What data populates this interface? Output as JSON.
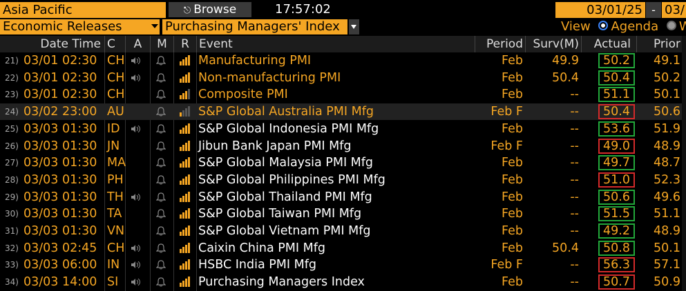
{
  "top": {
    "region": "Asia Pacific",
    "browse_label": "Browse",
    "clock": "17:57:02",
    "date_from": "03/01/25",
    "date_sep": "-",
    "date_to": "03/"
  },
  "filters": {
    "category": "Economic Releases",
    "index": "Purchasing Managers' Index"
  },
  "view": {
    "label": "View",
    "agenda": "Agenda",
    "week": "We"
  },
  "columns": {
    "datetime": "Date Time",
    "country": "C",
    "alert": "A",
    "memo": "M",
    "relevance": "R",
    "event": "Event",
    "period": "Period",
    "survey": "Surv(M)",
    "actual": "Actual",
    "prior": "Prior"
  },
  "colors": {
    "accent": "#f5a623",
    "beat": "#22a83a",
    "miss": "#d42a2a"
  },
  "rows": [
    {
      "n": "21)",
      "dt": "03/01 02:30",
      "c": "CH",
      "spk": true,
      "rel": 4,
      "ev": "Manufacturing PMI",
      "evc": "o",
      "per": "Feb",
      "surv": "49.9",
      "act": "50.2",
      "box": "g",
      "prior": "49.1"
    },
    {
      "n": "22)",
      "dt": "03/01 02:30",
      "c": "CH",
      "spk": true,
      "rel": 4,
      "ev": "Non-manufacturing PMI",
      "evc": "o",
      "per": "Feb",
      "surv": "50.4",
      "act": "50.4",
      "box": "g",
      "prior": "50.2"
    },
    {
      "n": "23)",
      "dt": "03/01 02:30",
      "c": "CH",
      "spk": false,
      "rel": 3,
      "ev": "Composite PMI",
      "evc": "o",
      "per": "Feb",
      "surv": "--",
      "act": "51.1",
      "box": "g",
      "prior": "50.1"
    },
    {
      "n": "24)",
      "dt": "03/02 23:00",
      "c": "AU",
      "spk": false,
      "rel": 1,
      "ev": "S&P Global Australia PMI Mfg",
      "evc": "o",
      "per": "Feb F",
      "surv": "--",
      "act": "50.4",
      "box": "r",
      "prior": "50.6",
      "hl": true
    },
    {
      "n": "25)",
      "dt": "03/03 01:30",
      "c": "ID",
      "spk": true,
      "rel": 4,
      "ev": "S&P Global Indonesia PMI Mfg",
      "evc": "w",
      "per": "Feb",
      "surv": "--",
      "act": "53.6",
      "box": "g",
      "prior": "51.9"
    },
    {
      "n": "26)",
      "dt": "03/03 01:30",
      "c": "JN",
      "spk": false,
      "rel": 4,
      "ev": "Jibun Bank Japan PMI Mfg",
      "evc": "w",
      "per": "Feb F",
      "surv": "--",
      "act": "49.0",
      "box": "r",
      "prior": "48.9"
    },
    {
      "n": "27)",
      "dt": "03/03 01:30",
      "c": "MA",
      "spk": false,
      "rel": 4,
      "ev": "S&P Global Malaysia PMI Mfg",
      "evc": "w",
      "per": "Feb",
      "surv": "--",
      "act": "49.7",
      "box": "g",
      "prior": "48.7"
    },
    {
      "n": "28)",
      "dt": "03/03 01:30",
      "c": "PH",
      "spk": false,
      "rel": 4,
      "ev": "S&P Global Philippines PMI Mfg",
      "evc": "w",
      "per": "Feb",
      "surv": "--",
      "act": "51.0",
      "box": "r",
      "prior": "52.3"
    },
    {
      "n": "29)",
      "dt": "03/03 01:30",
      "c": "TH",
      "spk": true,
      "rel": 4,
      "ev": "S&P Global Thailand PMI Mfg",
      "evc": "w",
      "per": "Feb",
      "surv": "--",
      "act": "50.6",
      "box": "g",
      "prior": "49.6"
    },
    {
      "n": "30)",
      "dt": "03/03 01:30",
      "c": "TA",
      "spk": false,
      "rel": 4,
      "ev": "S&P Global Taiwan PMI Mfg",
      "evc": "w",
      "per": "Feb",
      "surv": "--",
      "act": "51.5",
      "box": "g",
      "prior": "51.1"
    },
    {
      "n": "31)",
      "dt": "03/03 01:30",
      "c": "VN",
      "spk": false,
      "rel": 4,
      "ev": "S&P Global Vietnam PMI Mfg",
      "evc": "w",
      "per": "Feb",
      "surv": "--",
      "act": "49.2",
      "box": "g",
      "prior": "48.9"
    },
    {
      "n": "32)",
      "dt": "03/03 02:45",
      "c": "CH",
      "spk": true,
      "rel": 4,
      "ev": "Caixin China PMI Mfg",
      "evc": "w",
      "per": "Feb",
      "surv": "50.4",
      "act": "50.8",
      "box": "g",
      "prior": "50.1"
    },
    {
      "n": "33)",
      "dt": "03/03 06:00",
      "c": "IN",
      "spk": true,
      "rel": 4,
      "ev": "HSBC India PMI Mfg",
      "evc": "w",
      "per": "Feb F",
      "surv": "--",
      "act": "56.3",
      "box": "r",
      "prior": "57.1"
    },
    {
      "n": "34)",
      "dt": "03/03 14:00",
      "c": "SI",
      "spk": true,
      "rel": 4,
      "ev": "Purchasing Managers Index",
      "evc": "w",
      "per": "Feb",
      "surv": "--",
      "act": "50.7",
      "box": "r",
      "prior": "50.9"
    }
  ]
}
